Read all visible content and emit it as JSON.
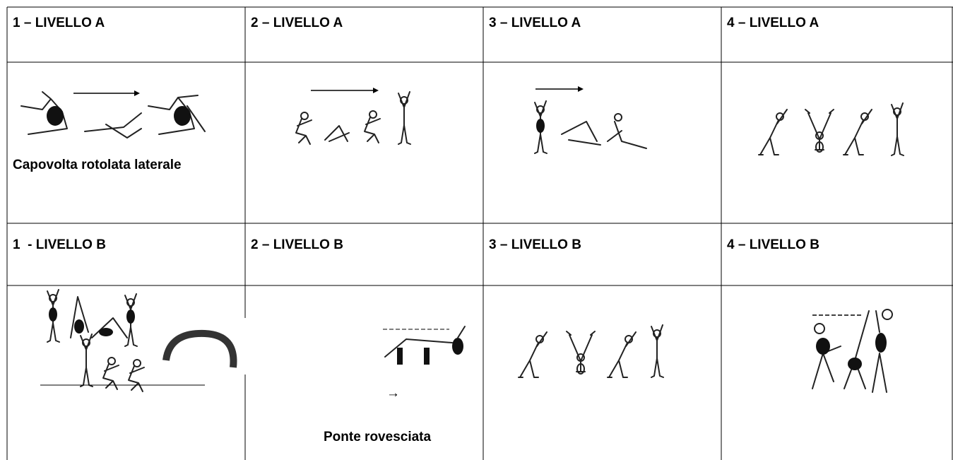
{
  "table": {
    "header_a": [
      "1 – LIVELLO A",
      "2 – LIVELLO A",
      "3 – LIVELLO A",
      "4 – LIVELLO A"
    ],
    "caption_a1": "Capovolta rotolata laterale",
    "header_b": [
      "1  - LIVELLO B",
      "2 – LIVELLO B",
      "3 – LIVELLO B",
      "4 – LIVELLO B"
    ],
    "arrow_b2": "→",
    "caption_b2": "Ponte rovesciata"
  }
}
